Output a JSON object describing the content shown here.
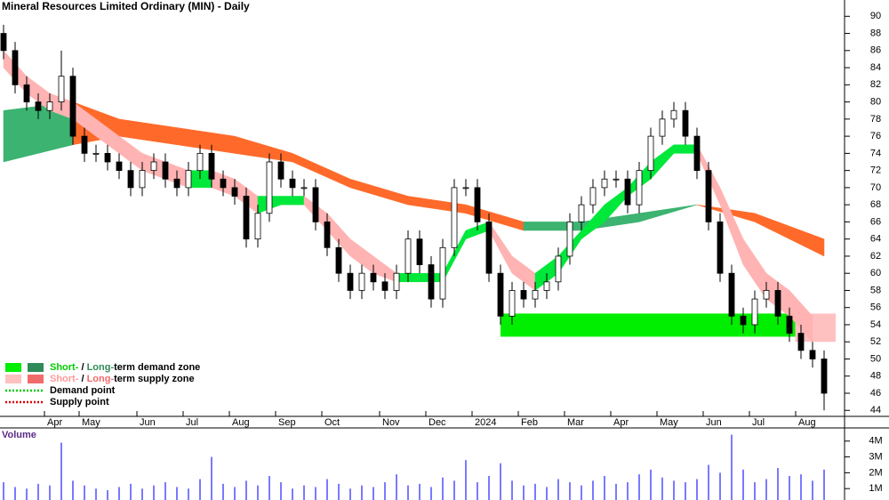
{
  "chart_data": {
    "type": "candlestick",
    "title": "Mineral Resources Limited Ordinary (MIN) - Daily",
    "categories": [
      null,
      null,
      null,
      null,
      "Apr",
      null,
      null,
      "May",
      null,
      null,
      null,
      null,
      "Jun",
      null,
      null,
      null,
      "Jul",
      null,
      null,
      null,
      "Aug",
      null,
      null,
      null,
      "Sep",
      null,
      null,
      null,
      "Oct",
      null,
      null,
      null,
      null,
      "Nov",
      null,
      null,
      null,
      "Dec",
      null,
      null,
      null,
      "2024",
      null,
      null,
      null,
      "Feb",
      null,
      null,
      null,
      "Mar",
      null,
      null,
      null,
      "Apr",
      null,
      null,
      null,
      "May",
      null,
      null,
      null,
      "Jun",
      null,
      null,
      null,
      "Jul",
      null,
      null,
      null,
      "Aug",
      null,
      null
    ],
    "open": [
      88,
      86,
      82,
      80,
      79,
      80,
      83,
      76,
      74,
      74,
      73,
      72,
      70,
      72,
      73,
      71,
      70,
      72,
      74,
      71,
      70,
      69,
      64,
      67,
      73,
      71,
      70,
      70,
      66,
      63,
      60,
      58,
      60,
      59,
      58,
      60,
      64,
      61,
      57,
      63,
      70,
      70,
      66,
      60,
      55,
      58,
      57,
      58,
      59,
      62,
      66,
      68,
      70,
      71,
      71,
      68,
      72,
      76,
      78,
      79,
      76,
      72,
      66,
      60,
      55,
      54,
      57,
      58,
      55,
      53,
      51,
      50
    ],
    "high": [
      89,
      87,
      83,
      81,
      81,
      86,
      84,
      77,
      75,
      75,
      74,
      73,
      73,
      74,
      74,
      72,
      73,
      75,
      75,
      72,
      71,
      70,
      68,
      74,
      74,
      72,
      71,
      71,
      67,
      64,
      61,
      61,
      61,
      60,
      61,
      65,
      65,
      62,
      64,
      71,
      71,
      71,
      67,
      61,
      59,
      59,
      59,
      60,
      63,
      67,
      69,
      71,
      72,
      72,
      72,
      73,
      77,
      79,
      80,
      80,
      77,
      73,
      67,
      61,
      56,
      58,
      59,
      59,
      56,
      54,
      52,
      51
    ],
    "low": [
      85,
      81,
      79,
      78,
      78,
      79,
      75,
      73,
      73,
      72,
      71,
      69,
      69,
      71,
      70,
      69,
      69,
      71,
      70,
      69,
      68,
      63,
      63,
      66,
      70,
      69,
      69,
      65,
      62,
      59,
      57,
      57,
      58,
      57,
      57,
      59,
      60,
      56,
      56,
      62,
      69,
      65,
      59,
      54,
      54,
      56,
      56,
      57,
      58,
      61,
      65,
      67,
      69,
      70,
      67,
      67,
      71,
      75,
      77,
      75,
      71,
      65,
      59,
      54,
      53,
      53,
      56,
      54,
      52,
      50,
      49,
      44
    ],
    "close": [
      86,
      82,
      80,
      79,
      80,
      83,
      76,
      74,
      74,
      73,
      72,
      70,
      72,
      73,
      71,
      70,
      72,
      74,
      71,
      70,
      69,
      64,
      67,
      73,
      71,
      70,
      70,
      66,
      63,
      60,
      58,
      60,
      59,
      58,
      60,
      64,
      61,
      57,
      63,
      70,
      70,
      66,
      60,
      55,
      58,
      57,
      58,
      59,
      62,
      66,
      68,
      70,
      71,
      71,
      68,
      72,
      76,
      78,
      79,
      76,
      72,
      66,
      60,
      55,
      54,
      57,
      58,
      55,
      53,
      51,
      50,
      46
    ],
    "ylim": [
      43.3,
      91.9
    ],
    "yticks": [
      44,
      46,
      48,
      50,
      52,
      54,
      56,
      58,
      60,
      62,
      64,
      66,
      68,
      70,
      72,
      74,
      76,
      78,
      80,
      82,
      84,
      86,
      88,
      90
    ],
    "bands": [
      {
        "x": [
          0,
          6,
          10,
          15,
          20,
          25,
          30,
          35,
          40,
          45,
          50,
          55,
          60,
          65,
          71
        ],
        "upper": [
          79,
          80,
          78,
          77,
          76,
          74,
          71,
          69,
          68,
          66,
          66,
          67,
          68,
          67,
          64
        ],
        "lower": [
          73,
          75,
          76,
          75,
          74,
          73,
          70,
          68,
          67,
          65,
          65,
          66,
          68,
          66,
          62
        ],
        "rise_color": "#3cb371",
        "fall_color": "#ff6a2a"
      },
      {
        "x": [
          0,
          2,
          4,
          6,
          8,
          10,
          12,
          14,
          16,
          18,
          20,
          22,
          24,
          26,
          28,
          30,
          32,
          34,
          36,
          38,
          40,
          42,
          44,
          46,
          48,
          50,
          52,
          54,
          56,
          58,
          60,
          62,
          64,
          66,
          68,
          70
        ],
        "upper": [
          86,
          83,
          81,
          80,
          78,
          76,
          74,
          73,
          72,
          72,
          71,
          69,
          69,
          69,
          67,
          64,
          62,
          60,
          60,
          60,
          65,
          66,
          62,
          60,
          62,
          65,
          68,
          70,
          73,
          75,
          75,
          70,
          64,
          60,
          58,
          55
        ],
        "lower": [
          84,
          81,
          79,
          78,
          76,
          74,
          72,
          71,
          70,
          70,
          69,
          67,
          68,
          68,
          65,
          62,
          60,
          59,
          59,
          59,
          64,
          65,
          60,
          58,
          60,
          64,
          66,
          69,
          71,
          74,
          74,
          68,
          61,
          57,
          55,
          52
        ],
        "rise_color": "#00e83a",
        "fall_color": "#ffb3b3"
      }
    ],
    "zones": [
      {
        "x": [
          0,
          6
        ],
        "range": [
          75.4,
          78.7
        ],
        "color": "#2e8b57"
      },
      {
        "x": [
          43,
          69
        ],
        "range": [
          52.6,
          55.3
        ],
        "color": "#00ee00"
      },
      {
        "x": [
          68.5,
          72
        ],
        "range": [
          52,
          55.3
        ],
        "color": "#ffc0c0"
      }
    ],
    "legend": {
      "rows": [
        {
          "swatches": [
            "#00ee00",
            "#2e8b57"
          ],
          "parts": [
            {
              "text": "Short-",
              "color": "#00cc00"
            },
            {
              "text": " / ",
              "color": "#000000"
            },
            {
              "text": "Long-",
              "color": "#2e8b57"
            },
            {
              "text": "term demand zone",
              "color": "#000000"
            }
          ]
        },
        {
          "swatches": [
            "#ffc0c0",
            "#f26b6b"
          ],
          "parts": [
            {
              "text": "Short-",
              "color": "#ff9a9a"
            },
            {
              "text": " / ",
              "color": "#000000"
            },
            {
              "text": "Long-",
              "color": "#f26b6b"
            },
            {
              "text": "term supply zone",
              "color": "#000000"
            }
          ]
        },
        {
          "dotted": "#00cc00",
          "parts": [
            {
              "text": "Demand point",
              "color": "#000000"
            }
          ]
        },
        {
          "dotted": "#dd0000",
          "parts": [
            {
              "text": "Supply point",
              "color": "#000000"
            }
          ]
        }
      ]
    },
    "volume": {
      "label": "Volume",
      "color": "#7a7aff",
      "values": [
        1400000,
        1100000,
        1000000,
        1300000,
        1200000,
        3900000,
        1500000,
        1200000,
        1000000,
        900000,
        1100000,
        1300000,
        1000000,
        1200000,
        1400000,
        1100000,
        1000000,
        1600000,
        3000000,
        1300000,
        1100000,
        1500000,
        1200000,
        1800000,
        1400000,
        1000000,
        1200000,
        1100000,
        1600000,
        1300000,
        1000000,
        1200000,
        1100000,
        1400000,
        1900000,
        1200000,
        1300000,
        1100000,
        1700000,
        1500000,
        2800000,
        1400000,
        1800000,
        2600000,
        1500000,
        1200000,
        1300000,
        1100000,
        1600000,
        1400000,
        1200000,
        1500000,
        1800000,
        1300000,
        1400000,
        1900000,
        2200000,
        1700000,
        1500000,
        1400000,
        1600000,
        2500000,
        2000000,
        4400000,
        2200000,
        1400000,
        1600000,
        2300000,
        1800000,
        1900000,
        1500000,
        2200000
      ],
      "ylim": [
        280000,
        4830000
      ],
      "yticks": [
        {
          "value": 1000000,
          "label": "1M"
        },
        {
          "value": 2000000,
          "label": "2M"
        },
        {
          "value": 3000000,
          "label": "3M"
        },
        {
          "value": 4000000,
          "label": "4M"
        }
      ]
    }
  }
}
